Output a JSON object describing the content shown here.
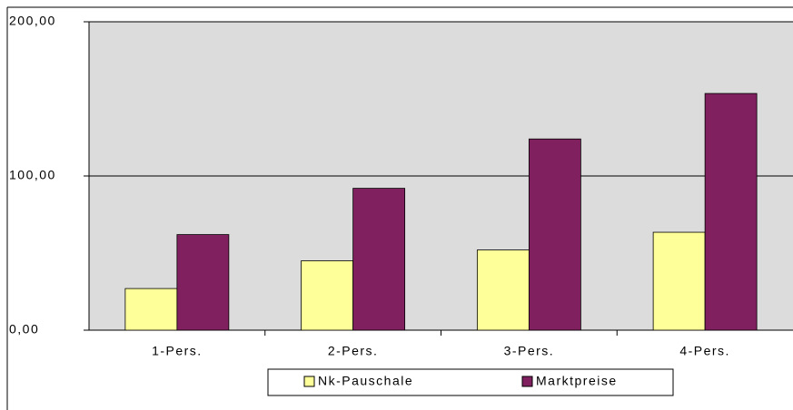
{
  "chart_data": {
    "type": "bar",
    "categories": [
      "1-Pers.",
      "2-Pers.",
      "3-Pers.",
      "4-Pers."
    ],
    "series": [
      {
        "name": "Nk-Pauschale",
        "color": "#ffff99",
        "values": [
          27,
          45,
          52,
          63.5
        ]
      },
      {
        "name": "Marktpreise",
        "color": "#80205f",
        "values": [
          62,
          92,
          124,
          153.5
        ]
      }
    ],
    "ylim": [
      0,
      200
    ],
    "yticks": [
      {
        "value": 0,
        "label": "0,00"
      },
      {
        "value": 100,
        "label": "100,00"
      },
      {
        "value": 200,
        "label": "200,00"
      }
    ],
    "grid": true
  }
}
